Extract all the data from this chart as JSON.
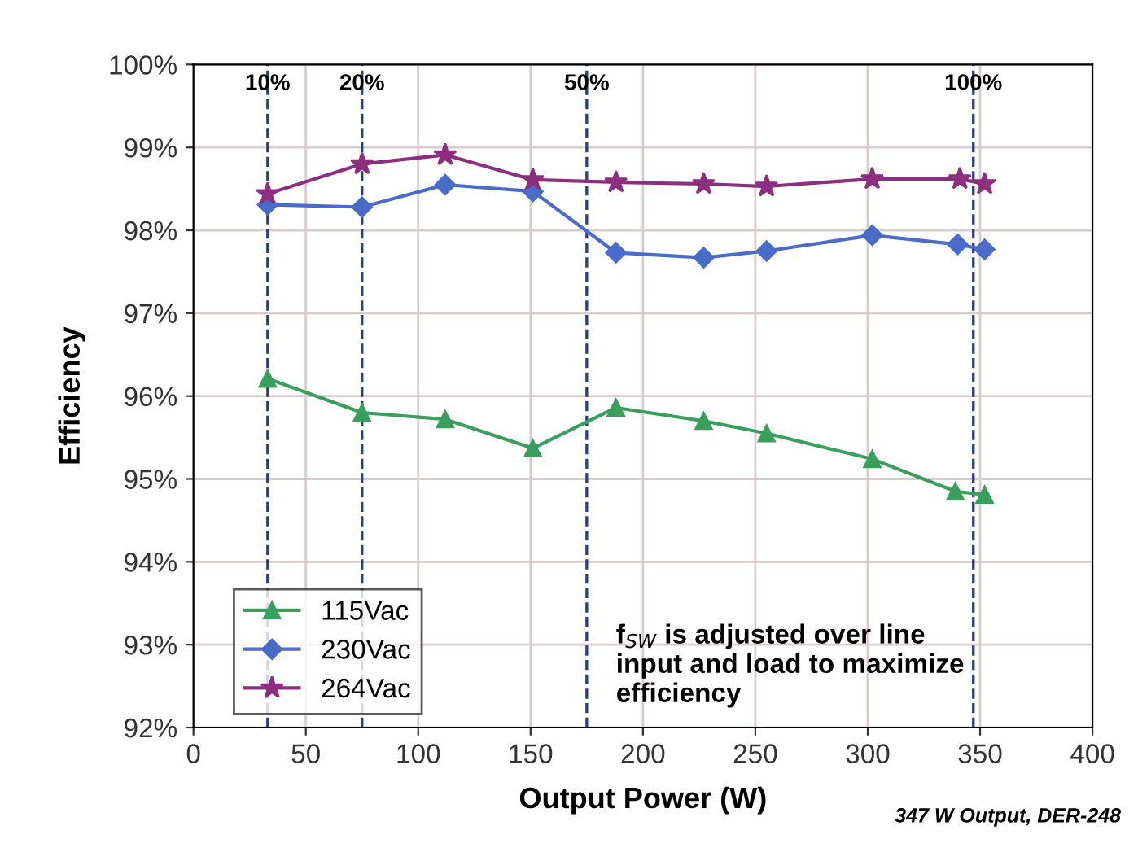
{
  "chart_data": {
    "type": "line",
    "xlabel": "Output Power (W)",
    "ylabel": "Efficiency",
    "xlim": [
      0,
      400
    ],
    "xticks": [
      0,
      50,
      100,
      150,
      200,
      250,
      300,
      350,
      400
    ],
    "ylim": [
      92,
      100
    ],
    "yticks": [
      {
        "value": 92,
        "label": "92%"
      },
      {
        "value": 93,
        "label": "93%"
      },
      {
        "value": 94,
        "label": "94%"
      },
      {
        "value": 95,
        "label": "95%"
      },
      {
        "value": 96,
        "label": "96%"
      },
      {
        "value": 97,
        "label": "97%"
      },
      {
        "value": 98,
        "label": "98%"
      },
      {
        "value": 99,
        "label": "99%"
      },
      {
        "value": 100,
        "label": "100%"
      }
    ],
    "grid": true,
    "legend": "bottom left",
    "series": [
      {
        "name": "115Vac",
        "color": "#3a9e5c",
        "marker": "triangle",
        "x": [
          33,
          75,
          112,
          151,
          188,
          227,
          255,
          302,
          339,
          352
        ],
        "values": [
          96.21,
          95.8,
          95.72,
          95.37,
          95.86,
          95.7,
          95.55,
          95.24,
          94.85,
          94.81
        ]
      },
      {
        "name": "230Vac",
        "color": "#4a6cc8",
        "marker": "diamond",
        "x": [
          33,
          75,
          112,
          151,
          188,
          227,
          255,
          302,
          340,
          352
        ],
        "values": [
          98.31,
          98.28,
          98.55,
          98.47,
          97.73,
          97.67,
          97.75,
          97.94,
          97.83,
          97.77
        ]
      },
      {
        "name": "264Vac",
        "color": "#8b2f7e",
        "marker": "star",
        "x": [
          33,
          75,
          112,
          151,
          188,
          227,
          255,
          302,
          341,
          352
        ],
        "values": [
          98.44,
          98.8,
          98.91,
          98.61,
          98.58,
          98.56,
          98.53,
          98.62,
          98.62,
          98.56
        ]
      }
    ],
    "ref_lines": [
      {
        "axis": "x",
        "value": 33,
        "color": "#2e3f7a",
        "line_style": "dashed"
      },
      {
        "axis": "x",
        "value": 75,
        "color": "#2e3f7a",
        "line_style": "dashed"
      },
      {
        "axis": "x",
        "value": 175,
        "color": "#2e3f7a",
        "line_style": "dashed"
      },
      {
        "axis": "x",
        "value": 347,
        "color": "#2e3f7a",
        "line_style": "dashed"
      }
    ],
    "annotations": [
      "f$_{SW}$ is adjusted over line input and load to maximize efficiency",
      "347 W Output, DER-248",
      {
        "text": "10%",
        "x": 33,
        "y": 100
      },
      {
        "text": "20%",
        "x": 75,
        "y": 100
      },
      {
        "text": "50%",
        "x": 175,
        "y": 100
      },
      {
        "text": "100%",
        "x": 347,
        "y": 100
      }
    ]
  }
}
